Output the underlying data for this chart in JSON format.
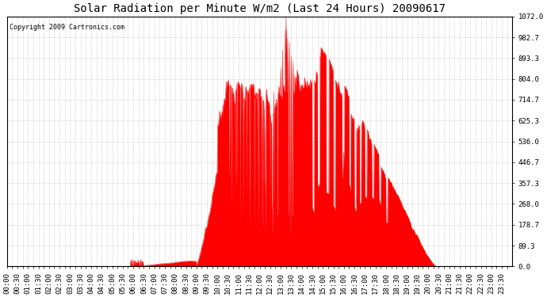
{
  "title": "Solar Radiation per Minute W/m2 (Last 24 Hours) 20090617",
  "copyright_text": "Copyright 2009 Cartronics.com",
  "ymin": 0.0,
  "ymax": 1072.0,
  "yticks": [
    0.0,
    89.3,
    178.7,
    268.0,
    357.3,
    446.7,
    536.0,
    625.3,
    714.7,
    804.0,
    893.3,
    982.7,
    1072.0
  ],
  "fill_color": "#ff0000",
  "background_color": "#ffffff",
  "plot_bg_color": "#ffffff",
  "grid_color": "#c0c0c0",
  "dashed_line_color": "#ff0000",
  "title_fontsize": 10,
  "copyright_fontsize": 6,
  "tick_fontsize": 6.5,
  "minutes_per_day": 1440
}
